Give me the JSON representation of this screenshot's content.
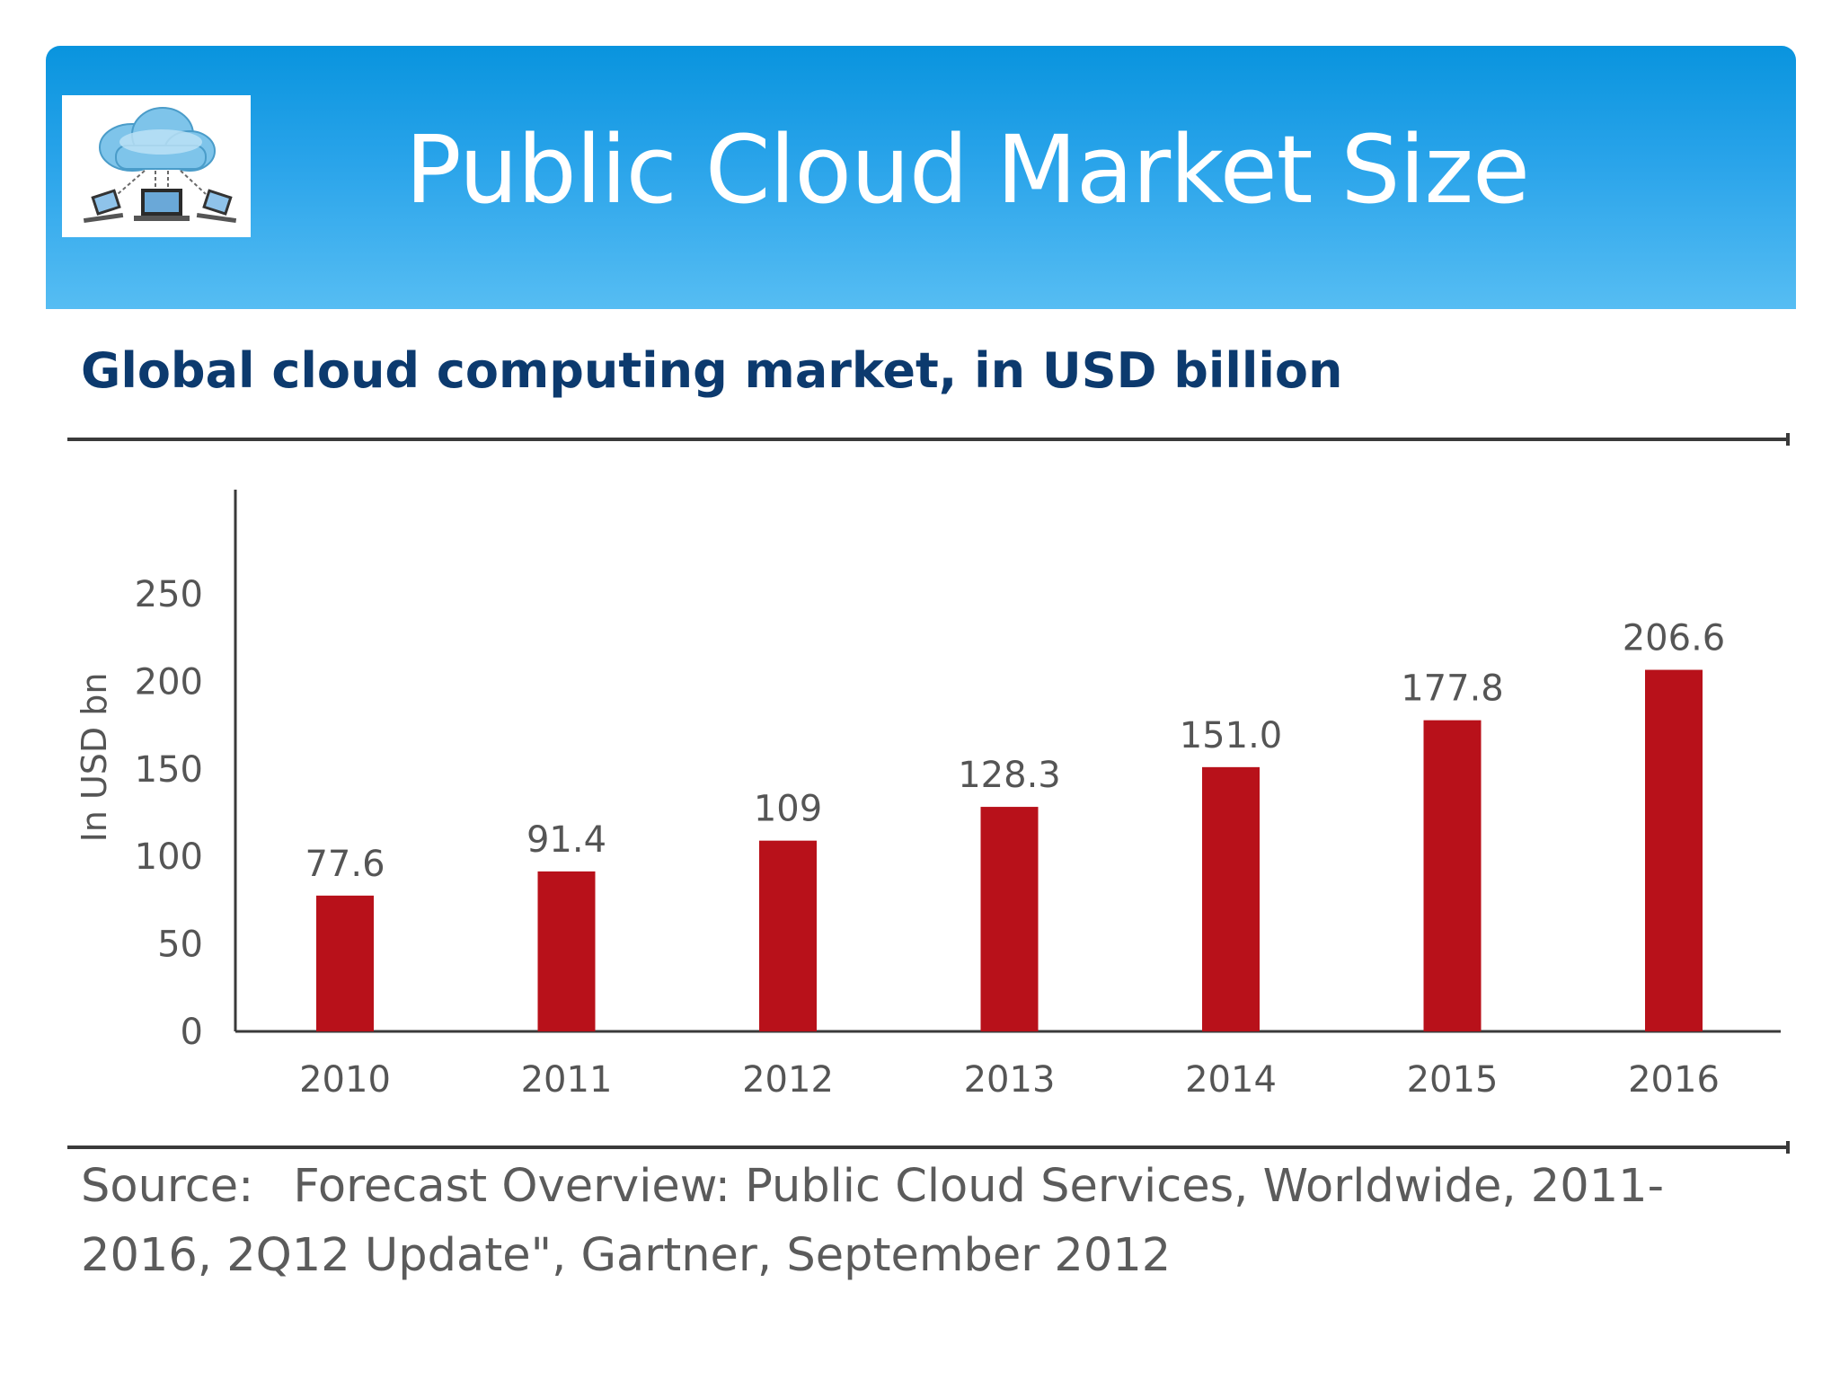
{
  "header": {
    "title": "Public Cloud Market Size",
    "logo_icon": "cloud-network-icon",
    "gradient_top": "#0994de",
    "gradient_bottom": "#56bdf3"
  },
  "chart_data": {
    "type": "bar",
    "title": "Global cloud computing market, in USD billion",
    "ylabel": "In USD bn",
    "xlabel": "",
    "ylim": [
      0,
      250
    ],
    "yticks": [
      0,
      50,
      100,
      150,
      200,
      250
    ],
    "grid": false,
    "bar_color": "#b8111a",
    "categories": [
      "2010",
      "2011",
      "2012",
      "2013",
      "2014",
      "2015",
      "2016"
    ],
    "values": [
      77.6,
      91.4,
      109,
      128.3,
      151.0,
      177.8,
      206.6
    ],
    "value_labels": [
      "77.6",
      "91.4",
      "109",
      "128.3",
      "151.0",
      "177.8",
      "206.6"
    ]
  },
  "source": {
    "label": "Source:",
    "text": "Forecast Overview: Public Cloud Services, Worldwide, 2011-2016, 2Q12 Update\", Gartner, September 2012"
  }
}
